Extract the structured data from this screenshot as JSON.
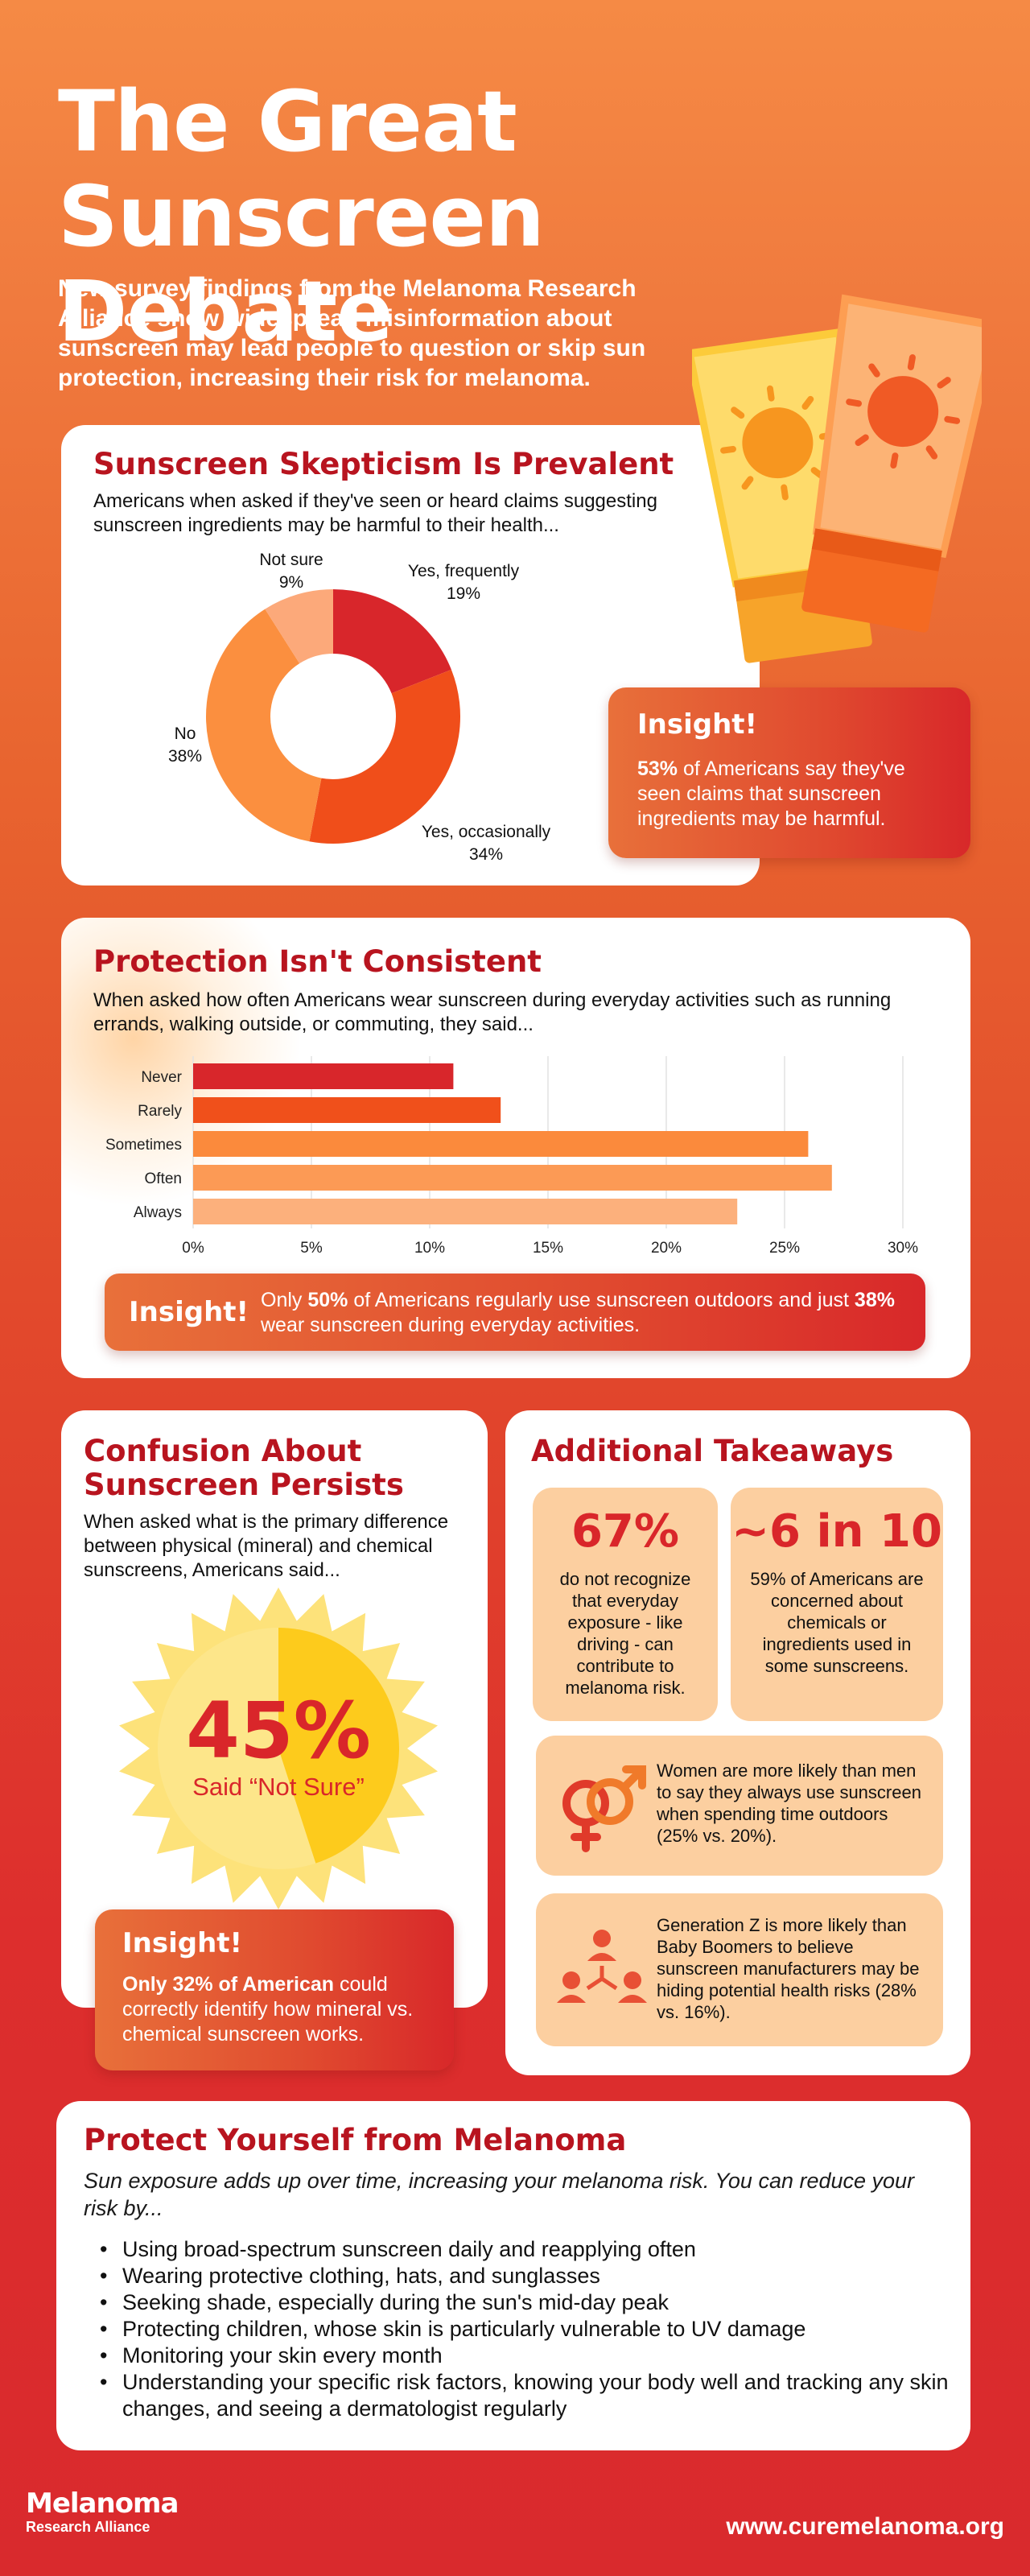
{
  "header": {
    "title_line1": "The Great",
    "title_line2": "Sunscreen Debate",
    "intro": "New survey findings from the Melanoma Research Alliance show widespread misinformation about sunscreen may lead people to question or skip sun protection, increasing their risk for melanoma."
  },
  "skepticism": {
    "title": "Sunscreen Skepticism Is Prevalent",
    "subtitle": "Americans when asked if they've seen or heard claims suggesting sunscreen ingredients may be harmful to their health...",
    "labels": [
      {
        "name": "Yes, frequently",
        "pct": "19%"
      },
      {
        "name": "Yes, occasionally",
        "pct": "34%"
      },
      {
        "name": "No",
        "pct": "38%"
      },
      {
        "name": "Not sure",
        "pct": "9%"
      }
    ],
    "insight_heading": "Insight!",
    "insight_bold": "53%",
    "insight_text": " of Americans say they've seen claims that sunscreen ingredients may be harmful."
  },
  "protection": {
    "title": "Protection Isn't Consistent",
    "subtitle": "When asked how often Americans wear sunscreen during everyday activities such as running errands, walking outside, or commuting, they said...",
    "insight_heading": "Insight!",
    "insight_p1": "Only ",
    "insight_b1": "50%",
    "insight_p2": " of Americans regularly use sunscreen outdoors and just ",
    "insight_b2": "38%",
    "insight_p3": " wear sunscreen during everyday activities."
  },
  "confusion": {
    "title_line1": "Confusion About",
    "title_line2": "Sunscreen Persists",
    "subtitle": "When asked what is the primary difference between physical (mineral) and chemical sunscreens, Americans said...",
    "big_value": "45%",
    "big_label": "Said “Not Sure”",
    "insight_heading": "Insight!",
    "insight_bold": "Only 32% of American",
    "insight_text": " could correctly identify how mineral vs. chemical sunscreen works."
  },
  "takeaways": {
    "title": "Additional Takeaways",
    "tile1_num": "67%",
    "tile1_text": "do not recognize that everyday exposure - like driving - can contribute to melanoma risk.",
    "tile2_num": "~6 in 10",
    "tile2_text": "59% of Americans are concerned about chemicals or ingredients used in some sunscreens.",
    "tile3_text": "Women are more likely than men to say they always use sunscreen when spending time outdoors (25% vs. 20%).",
    "tile4_text": "Generation Z is more likely than Baby Boomers to believe sunscreen manufacturers may be hiding potential health risks (28% vs. 16%)."
  },
  "protect": {
    "title": "Protect Yourself from Melanoma",
    "lead": "Sun exposure adds up over time, increasing your melanoma risk. You can reduce your risk by...",
    "items": [
      "Using broad-spectrum sunscreen daily and reapplying often",
      "Wearing protective clothing, hats, and sunglasses",
      "Seeking shade, especially during the sun's mid-day peak",
      "Protecting children, whose skin is particularly vulnerable to UV damage",
      "Monitoring your skin every month",
      "Understanding your specific risk factors, knowing your body well and tracking any skin changes, and seeing a dermatologist regularly"
    ]
  },
  "footer": {
    "logo_line1": "Melanoma",
    "logo_line2": "Research Alliance",
    "url": "www.curemelanoma.org"
  },
  "colors": {
    "accent_dark_red": "#b8141f",
    "red": "#d9262a",
    "orange": "#f06a1c",
    "tile": "#fccfa0"
  },
  "chart_data": [
    {
      "type": "pie",
      "categories": [
        "Yes, frequently",
        "Yes, occasionally",
        "No",
        "Not sure"
      ],
      "values": [
        19,
        34,
        38,
        9
      ],
      "colors": [
        "#d8262b",
        "#f04e1a",
        "#fb8f3f",
        "#fca97a"
      ],
      "donut": true
    },
    {
      "type": "bar",
      "orientation": "horizontal",
      "categories": [
        "Never",
        "Rarely",
        "Sometimes",
        "Often",
        "Always"
      ],
      "values": [
        11,
        13,
        26,
        27,
        23
      ],
      "colors": [
        "#d8262b",
        "#f0501b",
        "#fb8a3c",
        "#fc9a55",
        "#fcb07c"
      ],
      "xlim": [
        0,
        30
      ],
      "xticks": [
        "0%",
        "5%",
        "10%",
        "15%",
        "20%",
        "25%",
        "30%"
      ],
      "grid": true
    },
    {
      "type": "pie",
      "categories": [
        "Not sure"
      ],
      "values": [
        45
      ],
      "label": "45%"
    }
  ]
}
